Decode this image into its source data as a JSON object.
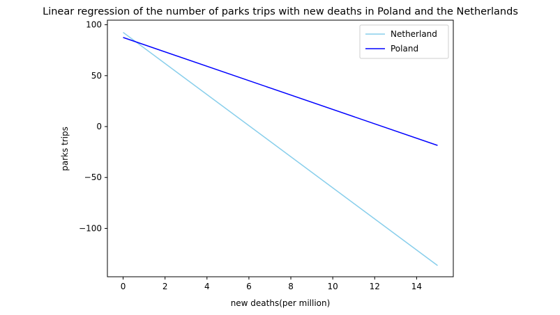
{
  "chart_data": {
    "type": "line",
    "title": "Linear regression of the number of parks trips with new deaths in Poland and the Netherlands",
    "xlabel": "new deaths(per million)",
    "ylabel": "parks trips",
    "xlim": [
      -0.75,
      15.75
    ],
    "ylim": [
      -147.5,
      104.5
    ],
    "xticks": [
      0,
      2,
      4,
      6,
      8,
      10,
      12,
      14
    ],
    "xtick_labels": [
      "0",
      "2",
      "4",
      "6",
      "8",
      "10",
      "12",
      "14"
    ],
    "yticks": [
      100,
      50,
      0,
      -50,
      -100
    ],
    "ytick_labels": [
      "100",
      "50",
      "0",
      "−50",
      "−100"
    ],
    "grid": false,
    "legend_position": "top-right",
    "series": [
      {
        "name": "Netherland",
        "color": "#87ceeb",
        "x": [
          0,
          15
        ],
        "y": [
          92.5,
          -136.5
        ]
      },
      {
        "name": "Poland",
        "color": "#0000ff",
        "x": [
          0,
          15
        ],
        "y": [
          87.5,
          -18.5
        ]
      }
    ]
  }
}
